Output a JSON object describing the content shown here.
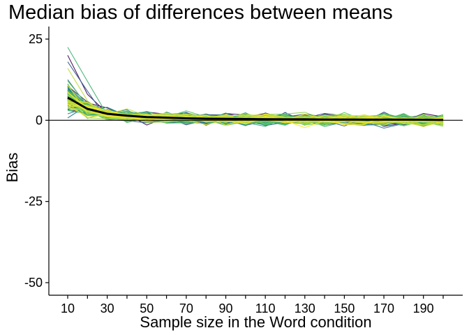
{
  "chart_data": {
    "type": "line",
    "title": "Median bias of differences between means",
    "xlabel": "Sample size in the Word condition",
    "ylabel": "Bias",
    "x_ticks": [
      10,
      20,
      30,
      40,
      50,
      60,
      70,
      80,
      90,
      100,
      110,
      120,
      130,
      140,
      150,
      160,
      170,
      180,
      190,
      200
    ],
    "x_tick_labels": [
      "10",
      "",
      "30",
      "",
      "50",
      "",
      "70",
      "",
      "90",
      "",
      "110",
      "",
      "130",
      "",
      "150",
      "",
      "170",
      "",
      "190",
      ""
    ],
    "y_ticks": [
      25,
      0,
      -25,
      -50
    ],
    "y_tick_labels": [
      "25",
      "0",
      "-25",
      "-50"
    ],
    "xlim": [
      10,
      200
    ],
    "ylim": [
      -50,
      25
    ],
    "reference_line_y": 0,
    "grid": false,
    "colormap": "viridis",
    "colormap_stops": [
      "#440154",
      "#3b528b",
      "#21918c",
      "#5ec962",
      "#fde725"
    ],
    "n_simulated_series": 120,
    "summary_series": {
      "color": "#000000",
      "x": [
        10,
        20,
        30,
        40,
        50,
        60,
        70,
        80,
        90,
        100,
        110,
        120,
        130,
        140,
        150,
        160,
        170,
        180,
        190,
        200
      ],
      "values": [
        7.0,
        3.5,
        2.0,
        1.4,
        1.0,
        0.8,
        0.6,
        0.5,
        0.45,
        0.4,
        0.35,
        0.3,
        0.3,
        0.25,
        0.25,
        0.2,
        0.2,
        0.2,
        0.15,
        0.1
      ]
    }
  }
}
